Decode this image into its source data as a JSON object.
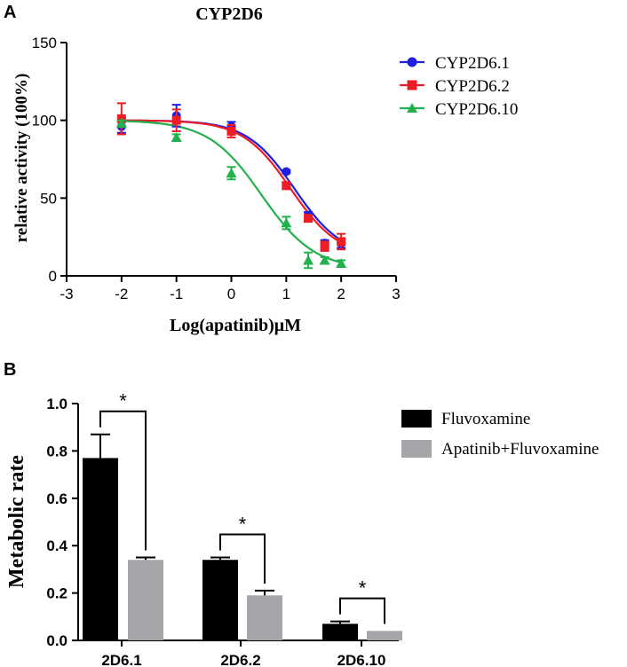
{
  "panel_labels": {
    "a": "A",
    "b": "B"
  },
  "colors": {
    "cyp2d6_1": "#1f1fe0",
    "cyp2d6_2": "#ee1c24",
    "cyp2d6_10": "#22b14c",
    "fluvoxamine": "#000000",
    "apatinib_fluvoxamine": "#a6a6aa",
    "axis": "#000000"
  },
  "chart_data": [
    {
      "type": "line",
      "title": "CYP2D6",
      "xlabel": "Log(apatinib)μM",
      "ylabel": "relative activity (100%)",
      "xlim": [
        -3,
        3
      ],
      "ylim": [
        0,
        150
      ],
      "xticks": [
        -3,
        -2,
        -1,
        0,
        1,
        2,
        3
      ],
      "yticks": [
        0,
        50,
        100,
        150
      ],
      "xtick_labels": [
        "-3",
        "-2",
        "-1",
        "0",
        "1",
        "2",
        "3"
      ],
      "ytick_labels": [
        "0",
        "50",
        "100",
        "150"
      ],
      "legend_position": "top-right",
      "series": [
        {
          "name": "CYP2D6.1",
          "color_key": "cyp2d6_1",
          "marker": "circle",
          "x": [
            -2,
            -1,
            0,
            1,
            1.4,
            1.7,
            2
          ],
          "y": [
            96,
            103,
            96,
            67,
            39,
            21,
            21
          ],
          "err": [
            4,
            7,
            3,
            1,
            2,
            2,
            3
          ],
          "fit": {
            "top": 100,
            "bottom": 12,
            "logIC50": 1.15,
            "hill": -1
          }
        },
        {
          "name": "CYP2D6.2",
          "color_key": "cyp2d6_2",
          "marker": "square",
          "x": [
            -2,
            -1,
            0,
            1,
            1.4,
            1.7,
            2
          ],
          "y": [
            101,
            100,
            93,
            58,
            37,
            19,
            22
          ],
          "err": [
            10,
            7,
            4,
            2,
            2,
            3,
            5
          ],
          "fit": {
            "top": 100,
            "bottom": 12,
            "logIC50": 1.08,
            "hill": -1
          }
        },
        {
          "name": "CYP2D6.10",
          "color_key": "cyp2d6_10",
          "marker": "triangle",
          "x": [
            -2,
            -1,
            0,
            1,
            1.4,
            1.7,
            2
          ],
          "y": [
            98,
            89,
            66,
            34,
            10,
            10,
            8
          ],
          "err": [
            2,
            2,
            4,
            4,
            5,
            2,
            2
          ],
          "fit": {
            "top": 100,
            "bottom": 4,
            "logIC50": 0.55,
            "hill": -0.9
          }
        }
      ]
    },
    {
      "type": "bar",
      "title": "",
      "xlabel": "",
      "ylabel": "Metabolic rate",
      "ylim": [
        0,
        1.0
      ],
      "yticks": [
        0,
        0.2,
        0.4,
        0.6,
        0.8,
        1.0
      ],
      "ytick_labels": [
        "0.0",
        "0.2",
        "0.4",
        "0.6",
        "0.8",
        "1.0"
      ],
      "categories": [
        "2D6.1",
        "2D6.2",
        "2D6.10"
      ],
      "legend_position": "top-right",
      "series": [
        {
          "name": "Fluvoxamine",
          "color_key": "fluvoxamine",
          "values": [
            0.77,
            0.34,
            0.07
          ],
          "err": [
            0.1,
            0.01,
            0.01
          ]
        },
        {
          "name": "Apatinib+Fluvoxamine",
          "color_key": "apatinib_fluvoxamine",
          "values": [
            0.34,
            0.19,
            0.04
          ],
          "err": [
            0.01,
            0.02,
            0.0
          ]
        }
      ],
      "significance": [
        {
          "category": "2D6.1",
          "label": "*"
        },
        {
          "category": "2D6.2",
          "label": "*"
        },
        {
          "category": "2D6.10",
          "label": "*"
        }
      ]
    }
  ]
}
